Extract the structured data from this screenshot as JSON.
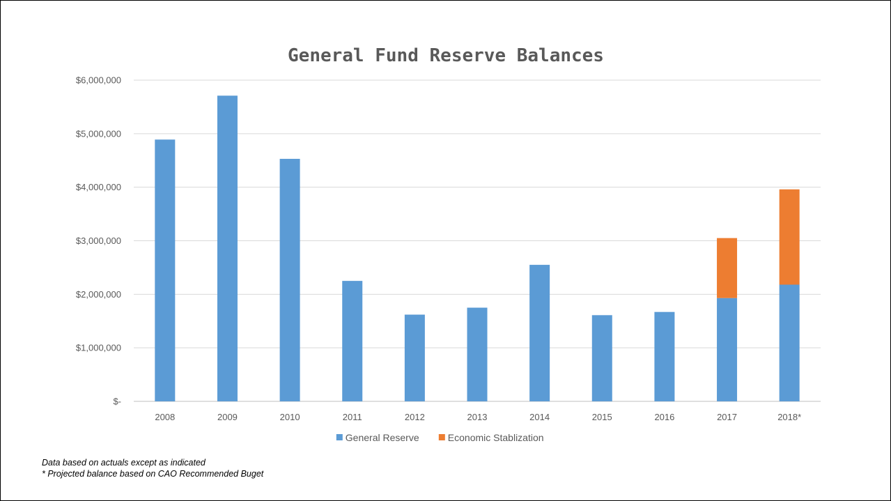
{
  "chart_data": {
    "type": "bar",
    "stacked": true,
    "title": "General Fund Reserve Balances",
    "categories": [
      "2008",
      "2009",
      "2010",
      "2011",
      "2012",
      "2013",
      "2014",
      "2015",
      "2016",
      "2017",
      "2018*"
    ],
    "series": [
      {
        "name": "General Reserve",
        "color": "#5B9BD5",
        "values": [
          4890000,
          5710000,
          4530000,
          2250000,
          1620000,
          1750000,
          2550000,
          1610000,
          1670000,
          1930000,
          2180000
        ]
      },
      {
        "name": "Economic Stablization",
        "color": "#ED7D31",
        "values": [
          0,
          0,
          0,
          0,
          0,
          0,
          0,
          0,
          0,
          1120000,
          1780000
        ]
      }
    ],
    "ylim": [
      0,
      6000000
    ],
    "ytick_labels": [
      "$-",
      "$1,000,000",
      "$2,000,000",
      "$3,000,000",
      "$4,000,000",
      "$5,000,000",
      "$6,000,000"
    ],
    "grid": true,
    "legend_position": "bottom"
  },
  "notes": {
    "line1": "Data based on actuals except as indicated",
    "line2": "* Projected balance based on CAO Recommended Buget"
  }
}
